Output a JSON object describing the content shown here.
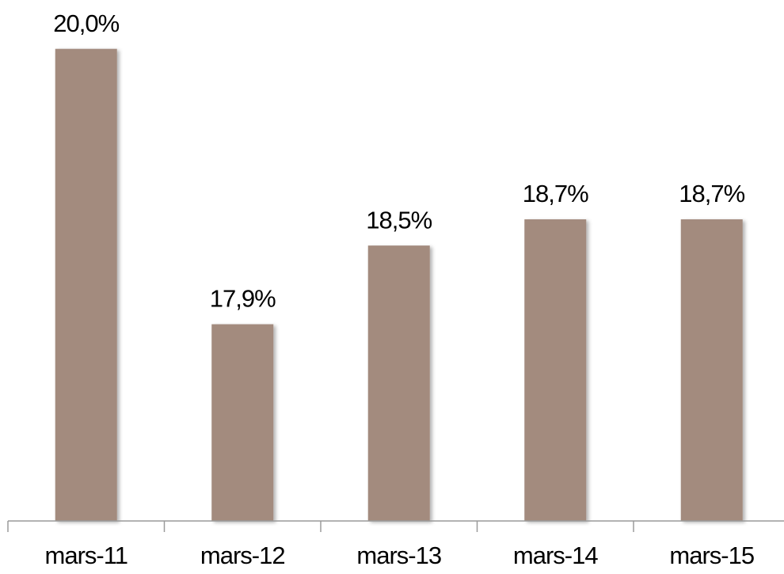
{
  "chart_data": {
    "type": "bar",
    "categories": [
      "mars-11",
      "mars-12",
      "mars-13",
      "mars-14",
      "mars-15"
    ],
    "values": [
      20.0,
      17.9,
      18.5,
      18.7,
      18.7
    ],
    "value_labels": [
      "20,0%",
      "17,9%",
      "18,5%",
      "18,7%",
      "18,7%"
    ],
    "color": "#a38b7e",
    "ylim": [
      16.4,
      20.3
    ]
  }
}
